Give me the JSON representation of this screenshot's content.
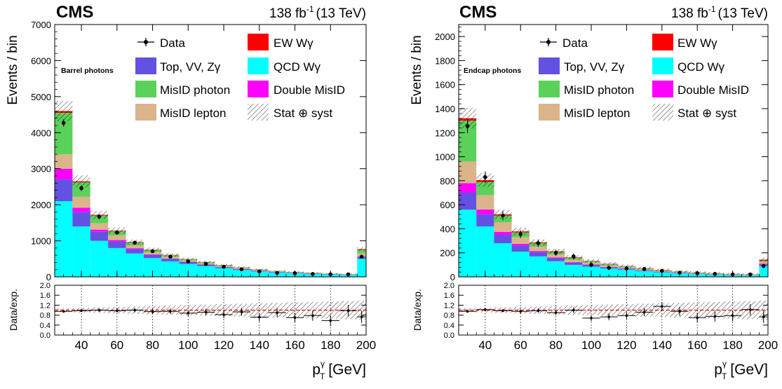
{
  "chart_data": [
    {
      "type": "bar",
      "stacked": true,
      "experiment": "CMS",
      "lumi_label": "138 fb",
      "lumi_exp": "-1",
      "energy_label": "(13 TeV)",
      "region_label": "Barrel photons",
      "ylabel": "Events / bin",
      "ratio_ylabel": "Data/exp.",
      "xlabel": "p",
      "xlabel_sub": "T",
      "xlabel_sup": "γ",
      "xlabel_unit": "[GeV]",
      "xlim": [
        25,
        200
      ],
      "ylim": [
        0,
        7000
      ],
      "ratio_ylim": [
        0,
        2
      ],
      "yticks": [
        0,
        1000,
        2000,
        3000,
        4000,
        5000,
        6000,
        7000
      ],
      "ratio_yticks": [
        "0.0",
        "0.4",
        "0.8",
        "1.2",
        "1.6",
        "2.0"
      ],
      "ratio_ytick_values": [
        0,
        0.4,
        0.8,
        1.2,
        1.6,
        2.0
      ],
      "xticks": [
        40,
        60,
        80,
        100,
        120,
        140,
        160,
        180,
        200
      ],
      "bin_edges": [
        25,
        35,
        45,
        55,
        65,
        75,
        85,
        95,
        105,
        115,
        125,
        135,
        145,
        155,
        165,
        175,
        185,
        195,
        200
      ],
      "series": [
        {
          "name": "QCD Wγ",
          "color": "#00ffff",
          "values": [
            2100,
            1400,
            1000,
            800,
            650,
            520,
            430,
            360,
            300,
            240,
            190,
            150,
            120,
            100,
            85,
            70,
            60,
            500
          ]
        },
        {
          "name": "Top, VV, Zγ",
          "color": "#6352e1",
          "values": [
            600,
            400,
            250,
            180,
            120,
            90,
            70,
            50,
            40,
            30,
            25,
            20,
            15,
            12,
            10,
            8,
            6,
            60
          ]
        },
        {
          "name": "Double MisID",
          "color": "#ff00ff",
          "values": [
            300,
            120,
            60,
            40,
            25,
            15,
            10,
            8,
            6,
            5,
            4,
            3,
            2,
            2,
            2,
            1,
            1,
            10
          ]
        },
        {
          "name": "MisID lepton",
          "color": "#dab48a",
          "values": [
            400,
            300,
            180,
            130,
            80,
            60,
            45,
            35,
            30,
            25,
            20,
            15,
            12,
            10,
            8,
            6,
            5,
            80
          ]
        },
        {
          "name": "MisID photon",
          "color": "#5ad25a",
          "values": [
            1150,
            400,
            210,
            120,
            80,
            60,
            45,
            35,
            30,
            25,
            20,
            15,
            12,
            10,
            8,
            6,
            5,
            100
          ]
        },
        {
          "name": "EW Wγ",
          "color": "#ff0000",
          "values": [
            50,
            30,
            20,
            15,
            12,
            10,
            8,
            7,
            6,
            5,
            4,
            4,
            3,
            3,
            3,
            2,
            2,
            20
          ]
        }
      ],
      "data_values": [
        4270,
        2460,
        1670,
        1230,
        950,
        710,
        560,
        430,
        360,
        280,
        210,
        150,
        110,
        100,
        80,
        70,
        70,
        560
      ],
      "ratio_values": [
        0.95,
        0.98,
        1.0,
        0.98,
        1.0,
        0.94,
        0.95,
        0.88,
        0.92,
        0.82,
        0.93,
        0.72,
        0.9,
        0.7,
        0.78,
        0.58,
        0.98,
        0.73
      ],
      "legend": {
        "data_label": "Data",
        "uncert_label": "Stat ⊕ syst",
        "left": [
          "Top, VV, Zγ",
          "MisID photon",
          "MisID lepton"
        ],
        "right": [
          "EW Wγ",
          "QCD Wγ",
          "Double MisID"
        ]
      }
    },
    {
      "type": "bar",
      "stacked": true,
      "experiment": "CMS",
      "lumi_label": "138 fb",
      "lumi_exp": "-1",
      "energy_label": "(13 TeV)",
      "region_label": "Endcap photons",
      "ylabel": "Events / bin",
      "ratio_ylabel": "Data/exp.",
      "xlabel": "p",
      "xlabel_sub": "T",
      "xlabel_sup": "γ",
      "xlabel_unit": "[GeV]",
      "xlim": [
        25,
        200
      ],
      "ylim": [
        0,
        2100
      ],
      "ratio_ylim": [
        0,
        2
      ],
      "yticks": [
        0,
        200,
        400,
        600,
        800,
        1000,
        1200,
        1400,
        1600,
        1800,
        2000
      ],
      "ratio_yticks": [
        "0.0",
        "0.4",
        "0.8",
        "1.2",
        "1.6",
        "2.0"
      ],
      "ratio_ytick_values": [
        0,
        0.4,
        0.8,
        1.2,
        1.6,
        2.0
      ],
      "xticks": [
        40,
        60,
        80,
        100,
        120,
        140,
        160,
        180,
        200
      ],
      "bin_edges": [
        25,
        35,
        45,
        55,
        65,
        75,
        85,
        95,
        105,
        115,
        125,
        135,
        145,
        155,
        165,
        175,
        185,
        195,
        200
      ],
      "series": [
        {
          "name": "QCD Wγ",
          "color": "#00ffff",
          "values": [
            560,
            420,
            280,
            210,
            170,
            130,
            100,
            85,
            70,
            60,
            48,
            38,
            30,
            25,
            20,
            16,
            14,
            90
          ]
        },
        {
          "name": "Top, VV, Zγ",
          "color": "#6352e1",
          "values": [
            140,
            100,
            70,
            50,
            35,
            25,
            18,
            14,
            10,
            8,
            6,
            5,
            4,
            3,
            2,
            2,
            1,
            15
          ]
        },
        {
          "name": "Double MisID",
          "color": "#ff00ff",
          "values": [
            80,
            40,
            25,
            15,
            10,
            7,
            5,
            4,
            3,
            2,
            2,
            2,
            1,
            1,
            1,
            1,
            1,
            5
          ]
        },
        {
          "name": "MisID lepton",
          "color": "#dab48a",
          "values": [
            180,
            120,
            80,
            55,
            35,
            25,
            20,
            15,
            12,
            10,
            8,
            6,
            5,
            4,
            3,
            3,
            2,
            15
          ]
        },
        {
          "name": "MisID photon",
          "color": "#5ad25a",
          "values": [
            340,
            110,
            55,
            40,
            30,
            20,
            15,
            12,
            10,
            8,
            6,
            5,
            4,
            3,
            3,
            2,
            2,
            10
          ]
        },
        {
          "name": "EW Wγ",
          "color": "#ff0000",
          "values": [
            20,
            15,
            10,
            8,
            6,
            5,
            4,
            3,
            3,
            2,
            2,
            2,
            1,
            1,
            1,
            1,
            1,
            8
          ]
        }
      ],
      "data_values": [
        1255,
        830,
        510,
        355,
        280,
        200,
        170,
        100,
        75,
        70,
        65,
        50,
        35,
        30,
        25,
        20,
        20,
        90
      ],
      "ratio_values": [
        0.95,
        1.02,
        0.98,
        0.95,
        0.98,
        0.9,
        1.0,
        0.68,
        0.73,
        0.78,
        0.92,
        1.15,
        0.95,
        0.7,
        0.75,
        0.78,
        1.02,
        0.73
      ],
      "legend": {
        "data_label": "Data",
        "uncert_label": "Stat ⊕ syst",
        "left": [
          "Top, VV, Zγ",
          "MisID photon",
          "MisID lepton"
        ],
        "right": [
          "EW Wγ",
          "QCD Wγ",
          "Double MisID"
        ]
      }
    }
  ]
}
